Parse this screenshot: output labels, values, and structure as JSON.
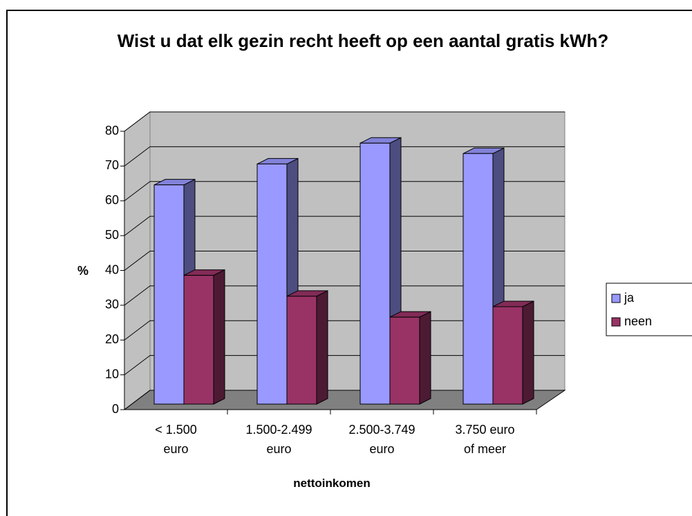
{
  "chart_data": {
    "type": "bar3d",
    "title": "Wist u dat elk gezin recht heeft op een aantal gratis kWh?",
    "xlabel": "nettoinkomen",
    "ylabel": "%",
    "categories": [
      "< 1.500\neuro",
      "1.500-2.499\neuro",
      "2.500-3.749\neuro",
      "3.750 euro\nof meer"
    ],
    "series": [
      {
        "name": "ja",
        "color": "#9999ff",
        "values": [
          63,
          69,
          75,
          72
        ]
      },
      {
        "name": "neen",
        "color": "#993366",
        "values": [
          37,
          31,
          25,
          28
        ]
      }
    ],
    "ylim": [
      0,
      80
    ],
    "yticks": [
      0,
      10,
      20,
      30,
      40,
      50,
      60,
      70,
      80
    ],
    "grid": true,
    "legend": "right"
  }
}
